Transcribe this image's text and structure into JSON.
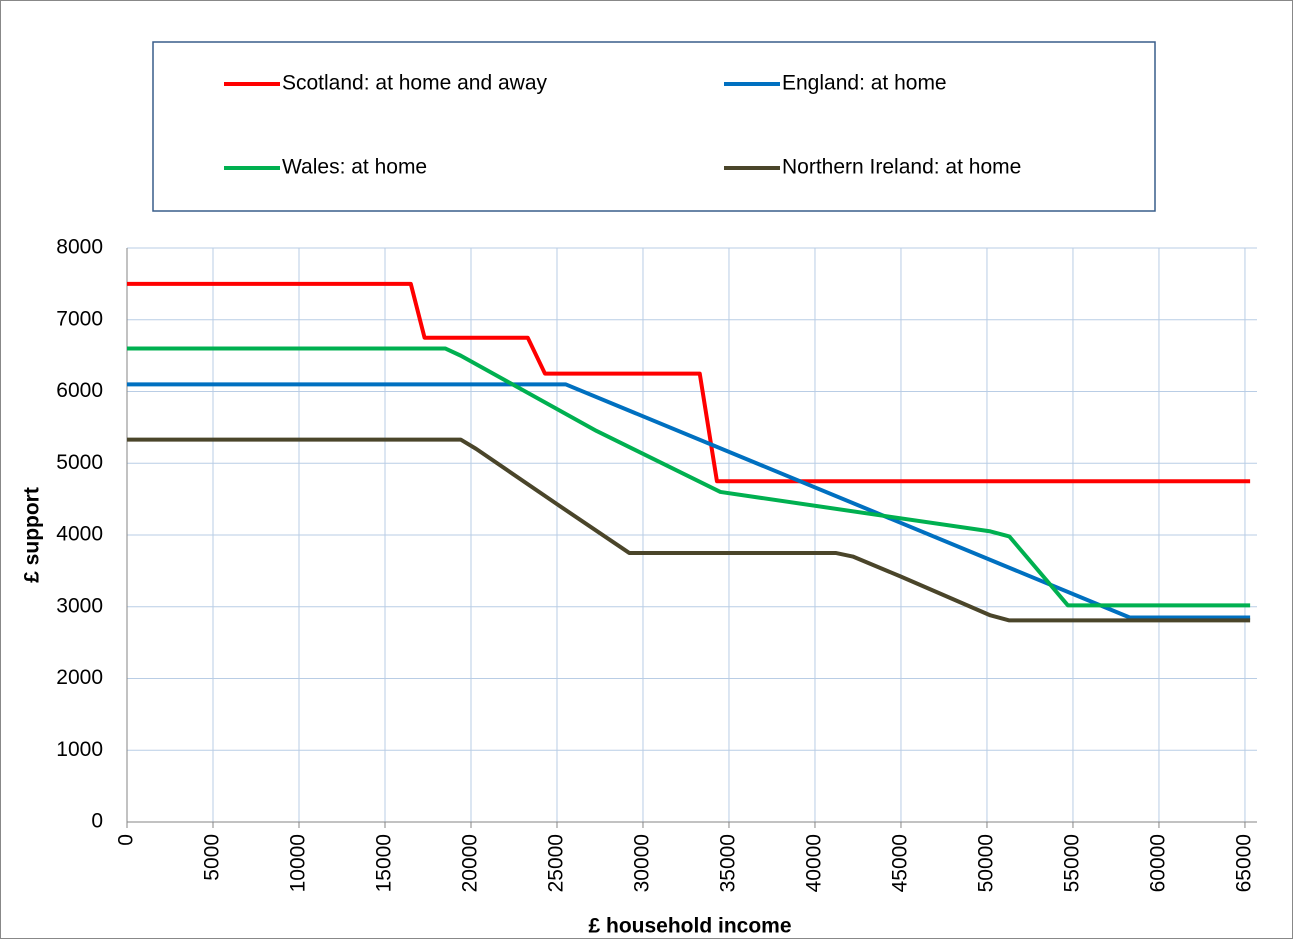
{
  "chart_data": {
    "type": "line",
    "x_label": "£ household income",
    "y_label": "£ support",
    "xlim": [
      0,
      65700
    ],
    "ylim": [
      0,
      8000
    ],
    "xticks": [
      0,
      5000,
      10000,
      15000,
      20000,
      25000,
      30000,
      35000,
      40000,
      45000,
      50000,
      55000,
      60000,
      65000
    ],
    "yticks": [
      0,
      1000,
      2000,
      3000,
      4000,
      5000,
      6000,
      7000,
      8000
    ],
    "grid": true,
    "series": [
      {
        "name": "Scotland: at home and away",
        "color": "#ff0000",
        "x": [
          0,
          16500,
          17300,
          23300,
          24300,
          33300,
          34300,
          65300
        ],
        "values": [
          7500,
          7500,
          6750,
          6750,
          6250,
          6250,
          4750,
          4750
        ]
      },
      {
        "name": "England: at home",
        "color": "#0070c0",
        "x": [
          0,
          25500,
          58300,
          65300
        ],
        "values": [
          6100,
          6100,
          2850,
          2850
        ]
      },
      {
        "name": "Wales: at home",
        "color": "#00b050",
        "x": [
          0,
          18500,
          19400,
          27300,
          34500,
          50200,
          51300,
          54700,
          65300
        ],
        "values": [
          6600,
          6600,
          6500,
          5450,
          4600,
          4050,
          3980,
          3020,
          3020
        ]
      },
      {
        "name": "Northern Ireland: at home",
        "color": "#4a452a",
        "x": [
          0,
          19400,
          20300,
          25000,
          29200,
          41200,
          42200,
          45000,
          50200,
          51300,
          65300
        ],
        "values": [
          5330,
          5330,
          5200,
          4430,
          3750,
          3750,
          3700,
          3420,
          2880,
          2810,
          2810
        ]
      }
    ]
  }
}
